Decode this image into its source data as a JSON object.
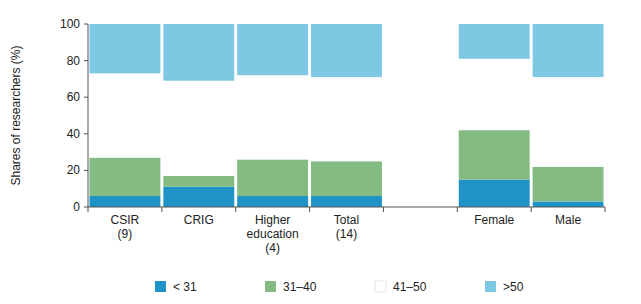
{
  "chart_data": {
    "type": "bar",
    "stacked": true,
    "y_label": "Shares of researchers (%)",
    "categories": [
      "CSIR (9)",
      "CRIG",
      "Higher education (4)",
      "Total (14)",
      null,
      "Female",
      "Male"
    ],
    "series": [
      {
        "name": "< 31",
        "color": "#1f93c8",
        "values": [
          6,
          11,
          6,
          6,
          null,
          15,
          3
        ]
      },
      {
        "name": "31–40",
        "color": "#83bb83",
        "values": [
          21,
          6,
          20,
          19,
          null,
          27,
          19
        ]
      },
      {
        "name": "41–50",
        "color": "#ffffff",
        "values": [
          46,
          52,
          46,
          46,
          null,
          39,
          49
        ]
      },
      {
        "name": ">50",
        "color": "#7fc8e3",
        "values": [
          27,
          31,
          28,
          29,
          null,
          19,
          29
        ]
      }
    ],
    "ylim": [
      0,
      100
    ],
    "yticks": [
      0,
      20,
      40,
      60,
      80,
      100
    ],
    "legend": "bottom",
    "grid": false
  }
}
